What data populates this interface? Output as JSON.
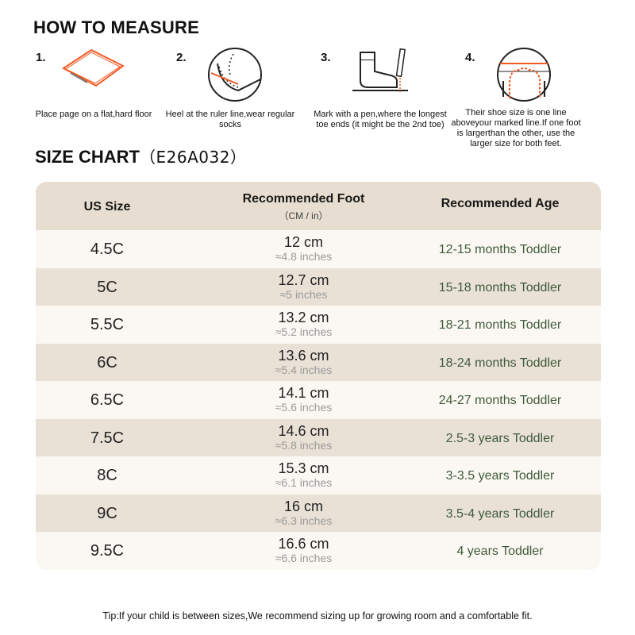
{
  "measure": {
    "title": "HOW TO MEASURE",
    "steps": [
      {
        "num": "1.",
        "text": "Place page on a flat,hard floor",
        "icon": "paper-on-floor-icon"
      },
      {
        "num": "2.",
        "text": "Heel at the ruler line,wear regular socks",
        "icon": "heel-at-line-icon"
      },
      {
        "num": "3.",
        "text": "Mark with a pen,where the longest toe ends (it might be the 2nd toe)",
        "icon": "sock-foot-pen-icon"
      },
      {
        "num": "4.",
        "text": "Their shoe size is one line aboveyour marked line.If one foot is largerthan the other, use the larger size for both feet.",
        "icon": "toe-mark-icon"
      }
    ]
  },
  "chart": {
    "title": "SIZE CHART",
    "code": "（E26A032）",
    "headers": {
      "size": "US Size",
      "foot": "Recommended Foot",
      "foot_sub": "（CM / in）",
      "age": "Recommended Age"
    },
    "rows": [
      {
        "size": "4.5C",
        "cm": "12 cm",
        "inch": "≈4.8 inches",
        "age": "12-15 months Toddler"
      },
      {
        "size": "5C",
        "cm": "12.7 cm",
        "inch": "≈5 inches",
        "age": "15-18 months Toddler"
      },
      {
        "size": "5.5C",
        "cm": "13.2 cm",
        "inch": "≈5.2 inches",
        "age": "18-21 months Toddler"
      },
      {
        "size": "6C",
        "cm": "13.6 cm",
        "inch": "≈5.4 inches",
        "age": "18-24 months Toddler"
      },
      {
        "size": "6.5C",
        "cm": "14.1 cm",
        "inch": "≈5.6 inches",
        "age": "24-27 months Toddler"
      },
      {
        "size": "7.5C",
        "cm": "14.6 cm",
        "inch": "≈5.8 inches",
        "age": "2.5-3 years Toddler"
      },
      {
        "size": "8C",
        "cm": "15.3 cm",
        "inch": "≈6.1 inches",
        "age": "3-3.5 years Toddler"
      },
      {
        "size": "9C",
        "cm": "16 cm",
        "inch": "≈6.3 inches",
        "age": "3.5-4 years Toddler"
      },
      {
        "size": "9.5C",
        "cm": "16.6 cm",
        "inch": "≈6.6 inches",
        "age": "4 years Toddler"
      }
    ]
  },
  "tip": "Tip:If your child is between sizes,We recommend sizing up for growing room and a comfortable fit.",
  "colors": {
    "accent": "#f05a24",
    "header_bg": "#e7ddd0",
    "row_dark": "#e9e1d6",
    "row_light": "#fbf8f4",
    "age_text": "#3f5a3a"
  }
}
